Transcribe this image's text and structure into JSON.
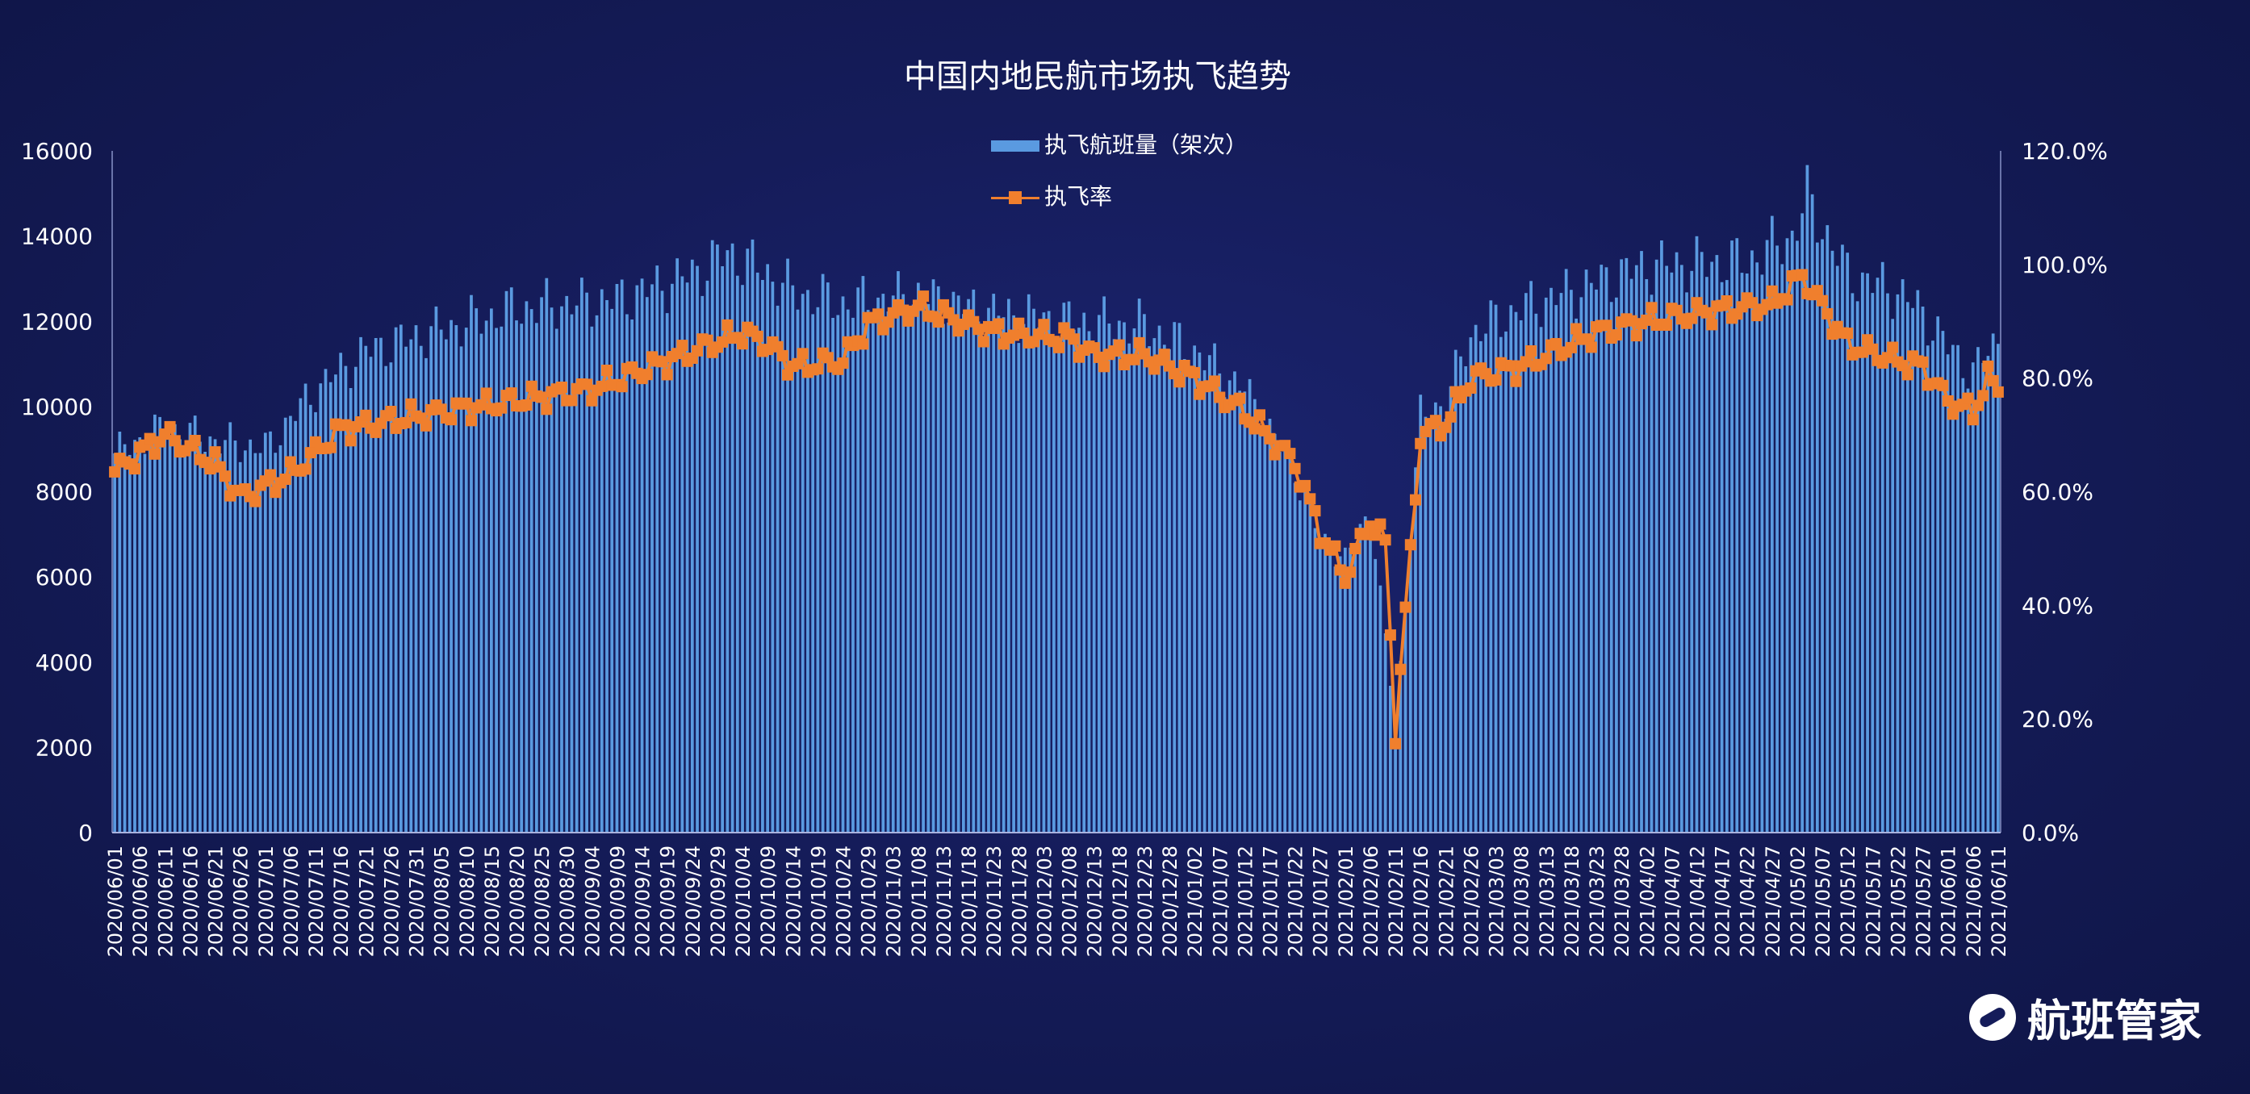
{
  "chart_data": {
    "type": "bar",
    "title": "中国内地民航市场执飞趋势",
    "series": [
      {
        "name": "执飞航班量（架次）",
        "type": "bar",
        "axis": "left",
        "color": "#5a9ae0"
      },
      {
        "name": "执飞率",
        "type": "line",
        "axis": "right",
        "color": "#f07f2d",
        "marker": "square"
      }
    ],
    "x_start": "2020/06/01",
    "x_end": "2021/06/11",
    "tick_every_days": 5,
    "x_tick_labels": [
      "2020/06/01",
      "2020/06/06",
      "2020/06/11",
      "2020/06/16",
      "2020/06/21",
      "2020/06/26",
      "2020/07/01",
      "2020/07/06",
      "2020/07/11",
      "2020/07/16",
      "2020/07/21",
      "2020/07/26",
      "2020/07/31",
      "2020/08/05",
      "2020/08/10",
      "2020/08/15",
      "2020/08/20",
      "2020/08/25",
      "2020/08/30",
      "2020/09/04",
      "2020/09/09",
      "2020/09/14",
      "2020/09/19",
      "2020/09/24",
      "2020/09/29",
      "2020/10/04",
      "2020/10/09",
      "2020/10/14",
      "2020/10/19",
      "2020/10/24",
      "2020/10/29",
      "2020/11/03",
      "2020/11/08",
      "2020/11/13",
      "2020/11/18",
      "2020/11/23",
      "2020/11/28",
      "2020/12/03",
      "2020/12/08",
      "2020/12/13",
      "2020/12/18",
      "2020/12/23",
      "2020/12/28",
      "2021/01/02",
      "2021/01/07",
      "2021/01/12",
      "2021/01/17",
      "2021/01/22",
      "2021/01/27",
      "2021/02/01",
      "2021/02/06",
      "2021/02/11",
      "2021/02/16",
      "2021/02/21",
      "2021/02/26",
      "2021/03/03",
      "2021/03/08",
      "2021/03/13",
      "2021/03/18",
      "2021/03/23",
      "2021/03/28",
      "2021/04/02",
      "2021/04/07",
      "2021/04/12",
      "2021/04/17",
      "2021/04/22",
      "2021/04/27",
      "2021/05/02",
      "2021/05/07",
      "2021/05/12",
      "2021/05/17",
      "2021/05/22",
      "2021/05/27",
      "2021/06/01",
      "2021/06/06",
      "2021/06/11"
    ],
    "flights_keypoints": [
      [
        "2020/06/01",
        8900
      ],
      [
        "2020/06/11",
        9500
      ],
      [
        "2020/06/21",
        9200
      ],
      [
        "2020/07/01",
        9000
      ],
      [
        "2020/07/11",
        10400
      ],
      [
        "2020/07/21",
        11300
      ],
      [
        "2020/08/05",
        11800
      ],
      [
        "2020/08/20",
        12300
      ],
      [
        "2020/09/09",
        12500
      ],
      [
        "2020/09/24",
        13100
      ],
      [
        "2020/10/01",
        13600
      ],
      [
        "2020/10/08",
        13200
      ],
      [
        "2020/10/14",
        12700
      ],
      [
        "2020/10/24",
        12400
      ],
      [
        "2020/11/08",
        12600
      ],
      [
        "2020/11/23",
        12200
      ],
      [
        "2020/12/08",
        12000
      ],
      [
        "2020/12/23",
        11900
      ],
      [
        "2021/01/02",
        11300
      ],
      [
        "2021/01/12",
        10400
      ],
      [
        "2021/01/22",
        8500
      ],
      [
        "2021/01/27",
        6900
      ],
      [
        "2021/02/01",
        6400
      ],
      [
        "2021/02/06",
        7600
      ],
      [
        "2021/02/11",
        2500
      ],
      [
        "2021/02/16",
        9800
      ],
      [
        "2021/02/21",
        10100
      ],
      [
        "2021/02/26",
        11700
      ],
      [
        "2021/03/08",
        12300
      ],
      [
        "2021/03/23",
        12900
      ],
      [
        "2021/04/02",
        13300
      ],
      [
        "2021/04/22",
        13400
      ],
      [
        "2021/05/01",
        14000
      ],
      [
        "2021/05/04",
        14900
      ],
      [
        "2021/05/12",
        13100
      ],
      [
        "2021/05/22",
        12700
      ],
      [
        "2021/05/27",
        12200
      ],
      [
        "2021/06/01",
        11400
      ],
      [
        "2021/06/06",
        10800
      ],
      [
        "2021/06/11",
        11600
      ]
    ],
    "rate_keypoints": [
      [
        "2020/06/01",
        63.5
      ],
      [
        "2020/06/11",
        70
      ],
      [
        "2020/06/21",
        65
      ],
      [
        "2020/06/26",
        59
      ],
      [
        "2020/07/06",
        63
      ],
      [
        "2020/07/16",
        71
      ],
      [
        "2020/08/05",
        74
      ],
      [
        "2020/08/20",
        76
      ],
      [
        "2020/09/04",
        78
      ],
      [
        "2020/09/19",
        83
      ],
      [
        "2020/10/04",
        88
      ],
      [
        "2020/10/09",
        86
      ],
      [
        "2020/10/14",
        82
      ],
      [
        "2020/10/24",
        83
      ],
      [
        "2020/10/29",
        89.5
      ],
      [
        "2020/11/08",
        92.5
      ],
      [
        "2020/11/23",
        88
      ],
      [
        "2020/12/08",
        87
      ],
      [
        "2020/12/13",
        84
      ],
      [
        "2020/12/23",
        84
      ],
      [
        "2021/01/02",
        80
      ],
      [
        "2021/01/12",
        74
      ],
      [
        "2021/01/22",
        65
      ],
      [
        "2021/01/27",
        53
      ],
      [
        "2021/02/01",
        45
      ],
      [
        "2021/02/06",
        55
      ],
      [
        "2021/02/09",
        51
      ],
      [
        "2021/02/11",
        18
      ],
      [
        "2021/02/16",
        70
      ],
      [
        "2021/02/21",
        72
      ],
      [
        "2021/02/26",
        80
      ],
      [
        "2021/03/08",
        82
      ],
      [
        "2021/03/23",
        88
      ],
      [
        "2021/04/02",
        90
      ],
      [
        "2021/04/17",
        92
      ],
      [
        "2021/04/27",
        93
      ],
      [
        "2021/05/03",
        98
      ],
      [
        "2021/05/12",
        86
      ],
      [
        "2021/05/22",
        83
      ],
      [
        "2021/05/27",
        82
      ],
      [
        "2021/06/01",
        76
      ],
      [
        "2021/06/06",
        74
      ],
      [
        "2021/06/09",
        80
      ],
      [
        "2021/06/11",
        78
      ]
    ],
    "y_left": {
      "min": 0,
      "max": 16000,
      "ticks": [
        "0",
        "2000",
        "4000",
        "6000",
        "8000",
        "10000",
        "12000",
        "14000",
        "16000"
      ]
    },
    "y_right": {
      "min": 0,
      "max": 120,
      "ticks": [
        "0.0%",
        "20.0%",
        "40.0%",
        "60.0%",
        "80.0%",
        "100.0%",
        "120.0%"
      ]
    },
    "legend_position": "top-center",
    "grid": false
  },
  "logo_text": "航班管家"
}
